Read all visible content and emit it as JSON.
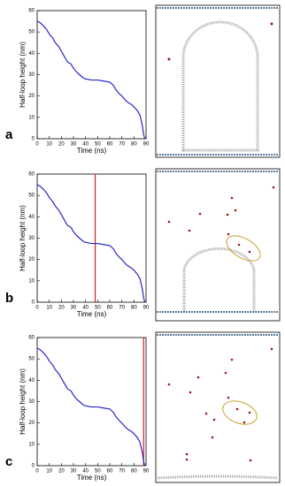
{
  "chart_data": [
    {
      "type": "line",
      "panel": "a",
      "xlabel": "Time (ns)",
      "ylabel": "Half-loop height (nm)",
      "xlim": [
        0,
        90
      ],
      "ylim": [
        0,
        60
      ],
      "xticks": [
        0,
        10,
        20,
        30,
        40,
        50,
        60,
        70,
        80,
        90
      ],
      "yticks": [
        0,
        10,
        20,
        30,
        40,
        50,
        60
      ],
      "x": [
        0,
        2,
        5,
        8,
        10,
        13,
        15,
        18,
        20,
        23,
        25,
        28,
        30,
        33,
        35,
        38,
        40,
        45,
        50,
        55,
        60,
        63,
        65,
        68,
        70,
        73,
        75,
        78,
        80,
        83,
        85,
        87,
        88,
        89
      ],
      "series": [
        {
          "color": "#2626c4",
          "values": [
            55,
            54.5,
            53,
            51,
            49,
            47,
            45,
            43,
            41,
            38,
            36,
            35,
            33,
            31,
            30,
            28.5,
            28,
            27.5,
            27.5,
            27,
            26.5,
            25,
            23,
            21,
            20,
            18,
            17,
            16,
            15,
            13,
            11,
            6,
            2,
            0
          ]
        }
      ]
    },
    {
      "type": "line",
      "panel": "b",
      "xlabel": "Time (ns)",
      "ylabel": "Half-loop height (nm)",
      "xlim": [
        0,
        90
      ],
      "ylim": [
        0,
        60
      ],
      "xticks": [
        0,
        10,
        20,
        30,
        40,
        50,
        60,
        70,
        80,
        90
      ],
      "yticks": [
        0,
        10,
        20,
        30,
        40,
        50,
        60
      ],
      "x": [
        0,
        2,
        5,
        8,
        10,
        13,
        15,
        18,
        20,
        23,
        25,
        28,
        30,
        33,
        35,
        38,
        40,
        45,
        50,
        55,
        60,
        63,
        65,
        68,
        70,
        73,
        75,
        78,
        80,
        83,
        85,
        87,
        88,
        89
      ],
      "series": [
        {
          "color": "#2626c4",
          "values": [
            55,
            54.5,
            53,
            51,
            49,
            47,
            45,
            43,
            41,
            38,
            36,
            35,
            33,
            31,
            30,
            28.5,
            28,
            27.5,
            27.5,
            27,
            26.5,
            25,
            23,
            21,
            20,
            18,
            17,
            16,
            15,
            13,
            11,
            6,
            2,
            0
          ]
        }
      ],
      "vline_x": 48,
      "vline_color": "#d42020"
    },
    {
      "type": "line",
      "panel": "c",
      "xlabel": "Time (ns)",
      "ylabel": "Half-loop height (nm)",
      "xlim": [
        0,
        90
      ],
      "ylim": [
        0,
        60
      ],
      "xticks": [
        0,
        10,
        20,
        30,
        40,
        50,
        60,
        70,
        80,
        90
      ],
      "yticks": [
        0,
        10,
        20,
        30,
        40,
        50,
        60
      ],
      "x": [
        0,
        2,
        5,
        8,
        10,
        13,
        15,
        18,
        20,
        23,
        25,
        28,
        30,
        33,
        35,
        38,
        40,
        45,
        50,
        55,
        60,
        63,
        65,
        68,
        70,
        73,
        75,
        78,
        80,
        83,
        85,
        87,
        88,
        89
      ],
      "series": [
        {
          "color": "#2626c4",
          "values": [
            55,
            54.5,
            53,
            51,
            49,
            47,
            45,
            43,
            41,
            38,
            36,
            35,
            33,
            31,
            30,
            28.5,
            28,
            27.5,
            27.5,
            27,
            26.5,
            25,
            23,
            21,
            20,
            18,
            17,
            16,
            15,
            13,
            11,
            6,
            2,
            0
          ]
        }
      ],
      "vline_x": 88,
      "vline_color": "#d42020"
    }
  ]
}
